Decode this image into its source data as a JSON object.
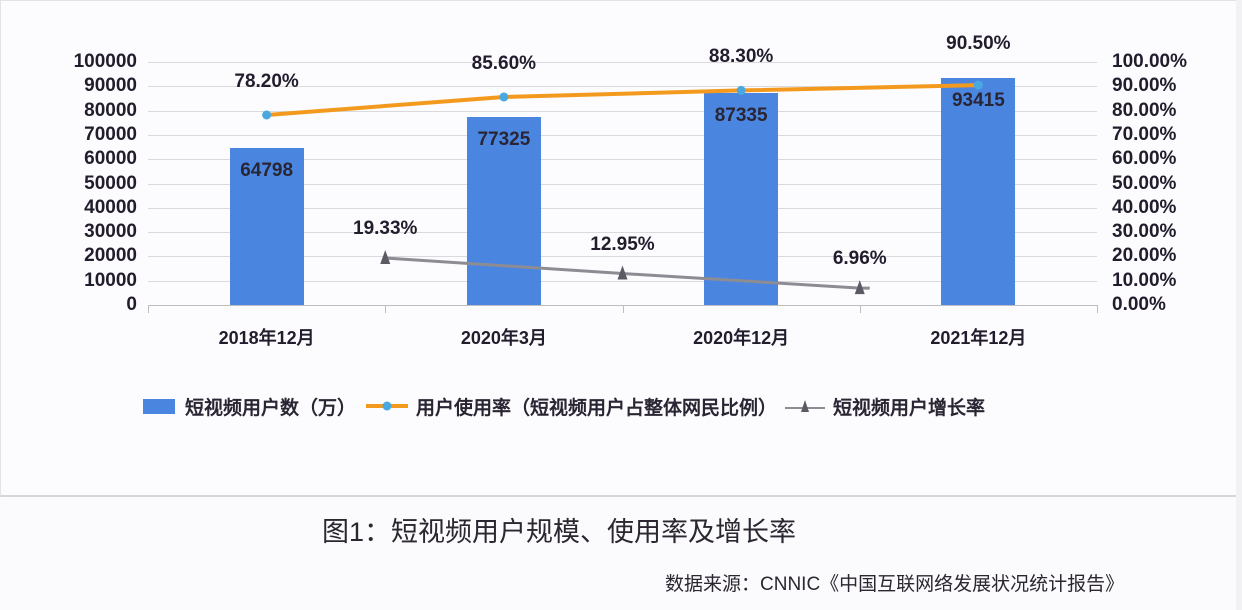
{
  "chart_data": {
    "type": "bar",
    "title": "图1：短视频用户规模、使用率及增长率",
    "source": "数据来源：CNNIC《中国互联网络发展状况统计报告》",
    "categories": [
      "2018年12月",
      "2020年3月",
      "2020年12月",
      "2021年12月"
    ],
    "series": [
      {
        "name": "短视频用户数（万）",
        "type": "bar",
        "axis": "left",
        "color": "#4a86e0",
        "values": [
          64798,
          77325,
          87335,
          93415
        ]
      },
      {
        "name": "用户使用率（短视频用户占整体网民比例）",
        "type": "line",
        "axis": "right",
        "color": "#f39a1e",
        "marker": "circle",
        "marker_color": "#4aa8e0",
        "values": [
          78.2,
          85.6,
          88.3,
          90.5
        ],
        "labels": [
          "78.20%",
          "85.60%",
          "88.30%",
          "90.50%"
        ]
      },
      {
        "name": "短视频用户增长率",
        "type": "line",
        "axis": "right",
        "color": "#8e8c93",
        "marker": "triangle",
        "x_positions": [
          "2018年12月→2020年3月",
          "2020年3月→2020年12月",
          "2020年12月→2021年12月"
        ],
        "values": [
          19.33,
          12.95,
          6.96
        ],
        "labels": [
          "19.33%",
          "12.95%",
          "6.96%"
        ]
      }
    ],
    "y_left": {
      "ylim": [
        0,
        100000
      ],
      "ticks": [
        "100000",
        "90000",
        "80000",
        "70000",
        "60000",
        "50000",
        "40000",
        "30000",
        "20000",
        "10000",
        "0"
      ]
    },
    "y_right": {
      "ylim": [
        0,
        100
      ],
      "ticks": [
        "100.00%",
        "90.00%",
        "80.00%",
        "70.00%",
        "60.00%",
        "50.00%",
        "40.00%",
        "30.00%",
        "20.00%",
        "10.00%",
        "0.00%"
      ]
    },
    "grid": true,
    "legend_position": "bottom",
    "xlabel": "",
    "ylabel": ""
  },
  "legend": {
    "bar": "短视频用户数（万）",
    "usage": "用户使用率（短视频用户占整体网民比例）",
    "growth": "短视频用户增长率"
  },
  "caption": "图1：短视频用户规模、使用率及增长率",
  "source": "数据来源：CNNIC《中国互联网络发展状况统计报告》"
}
